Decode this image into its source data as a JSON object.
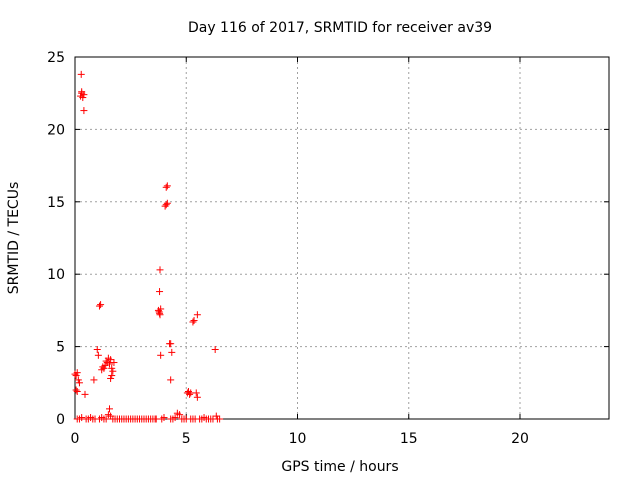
{
  "chart_data": {
    "type": "scatter",
    "title": "Day 116 of 2017, SRMTID for receiver av39",
    "xlabel": "GPS time / hours",
    "ylabel": "SRMTID / TECUs",
    "xlim": [
      0,
      24
    ],
    "ylim": [
      0,
      25
    ],
    "xticks": [
      0,
      5,
      10,
      15,
      20
    ],
    "yticks": [
      0,
      5,
      10,
      15,
      20,
      25
    ],
    "grid": true,
    "marker": "plus",
    "marker_color": "#ff0000",
    "series": [
      {
        "points": [
          [
            0.0,
            3.1
          ],
          [
            0.05,
            3.0
          ],
          [
            0.1,
            3.2
          ],
          [
            0.05,
            2.0
          ],
          [
            0.1,
            1.9
          ],
          [
            0.15,
            2.7
          ],
          [
            0.2,
            2.5
          ],
          [
            0.1,
            0.0
          ],
          [
            0.2,
            0.0
          ],
          [
            0.3,
            0.1
          ],
          [
            0.25,
            22.3
          ],
          [
            0.3,
            22.5
          ],
          [
            0.35,
            22.2
          ],
          [
            0.4,
            22.4
          ],
          [
            0.3,
            22.6
          ],
          [
            0.28,
            23.8
          ],
          [
            0.4,
            21.3
          ],
          [
            0.45,
            1.7
          ],
          [
            0.5,
            0.0
          ],
          [
            0.6,
            0.0
          ],
          [
            0.7,
            0.1
          ],
          [
            0.8,
            0.0
          ],
          [
            0.85,
            2.7
          ],
          [
            0.9,
            0.0
          ],
          [
            1.0,
            4.8
          ],
          [
            1.05,
            4.4
          ],
          [
            1.1,
            7.8
          ],
          [
            1.15,
            7.9
          ],
          [
            1.2,
            3.4
          ],
          [
            1.25,
            3.6
          ],
          [
            1.3,
            3.5
          ],
          [
            1.35,
            3.7
          ],
          [
            1.4,
            4.0
          ],
          [
            1.45,
            3.9
          ],
          [
            1.5,
            4.2
          ],
          [
            1.55,
            3.8
          ],
          [
            1.6,
            4.1
          ],
          [
            1.65,
            3.5
          ],
          [
            1.7,
            3.3
          ],
          [
            1.75,
            3.9
          ],
          [
            1.6,
            2.8
          ],
          [
            1.65,
            3.0
          ],
          [
            1.55,
            0.7
          ],
          [
            1.5,
            0.3
          ],
          [
            1.6,
            0.2
          ],
          [
            1.1,
            0.0
          ],
          [
            1.2,
            0.1
          ],
          [
            1.3,
            0.0
          ],
          [
            1.4,
            0.0
          ],
          [
            1.7,
            0.0
          ],
          [
            1.8,
            0.0
          ],
          [
            1.9,
            0.0
          ],
          [
            2.0,
            0.0
          ],
          [
            2.1,
            0.0
          ],
          [
            2.2,
            0.0
          ],
          [
            2.3,
            0.0
          ],
          [
            2.4,
            0.0
          ],
          [
            2.5,
            0.0
          ],
          [
            2.6,
            0.0
          ],
          [
            2.7,
            0.0
          ],
          [
            2.8,
            0.0
          ],
          [
            2.9,
            0.0
          ],
          [
            3.0,
            0.0
          ],
          [
            3.1,
            0.0
          ],
          [
            3.2,
            0.0
          ],
          [
            3.3,
            0.0
          ],
          [
            3.4,
            0.0
          ],
          [
            3.5,
            0.0
          ],
          [
            3.6,
            0.0
          ],
          [
            3.65,
            0.0
          ],
          [
            3.75,
            7.5
          ],
          [
            3.8,
            7.3
          ],
          [
            3.85,
            7.6
          ],
          [
            3.78,
            7.4
          ],
          [
            3.82,
            7.2
          ],
          [
            3.8,
            8.8
          ],
          [
            3.82,
            10.3
          ],
          [
            3.85,
            4.4
          ],
          [
            3.9,
            0.0
          ],
          [
            4.0,
            0.1
          ],
          [
            4.05,
            14.7
          ],
          [
            4.1,
            14.8
          ],
          [
            4.15,
            14.9
          ],
          [
            4.1,
            16.0
          ],
          [
            4.15,
            16.1
          ],
          [
            4.25,
            5.2
          ],
          [
            4.3,
            5.2
          ],
          [
            4.3,
            2.7
          ],
          [
            4.35,
            4.6
          ],
          [
            4.3,
            0.0
          ],
          [
            4.4,
            0.0
          ],
          [
            4.5,
            0.1
          ],
          [
            4.6,
            0.4
          ],
          [
            4.7,
            0.3
          ],
          [
            4.8,
            0.0
          ],
          [
            4.9,
            0.0
          ],
          [
            5.05,
            1.8
          ],
          [
            5.1,
            1.9
          ],
          [
            5.15,
            1.7
          ],
          [
            5.2,
            1.8
          ],
          [
            5.3,
            6.7
          ],
          [
            5.35,
            6.8
          ],
          [
            5.5,
            7.2
          ],
          [
            5.45,
            1.8
          ],
          [
            5.5,
            1.5
          ],
          [
            5.3,
            0.0
          ],
          [
            5.4,
            0.0
          ],
          [
            5.6,
            0.0
          ],
          [
            5.7,
            0.0
          ],
          [
            5.8,
            0.1
          ],
          [
            5.9,
            0.0
          ],
          [
            6.0,
            0.0
          ],
          [
            6.1,
            0.0
          ],
          [
            6.2,
            0.0
          ],
          [
            6.3,
            4.8
          ],
          [
            6.35,
            0.2
          ],
          [
            6.4,
            0.0
          ],
          [
            6.5,
            0.0
          ],
          [
            5.0,
            0.0
          ],
          [
            5.2,
            0.0
          ]
        ]
      }
    ]
  }
}
